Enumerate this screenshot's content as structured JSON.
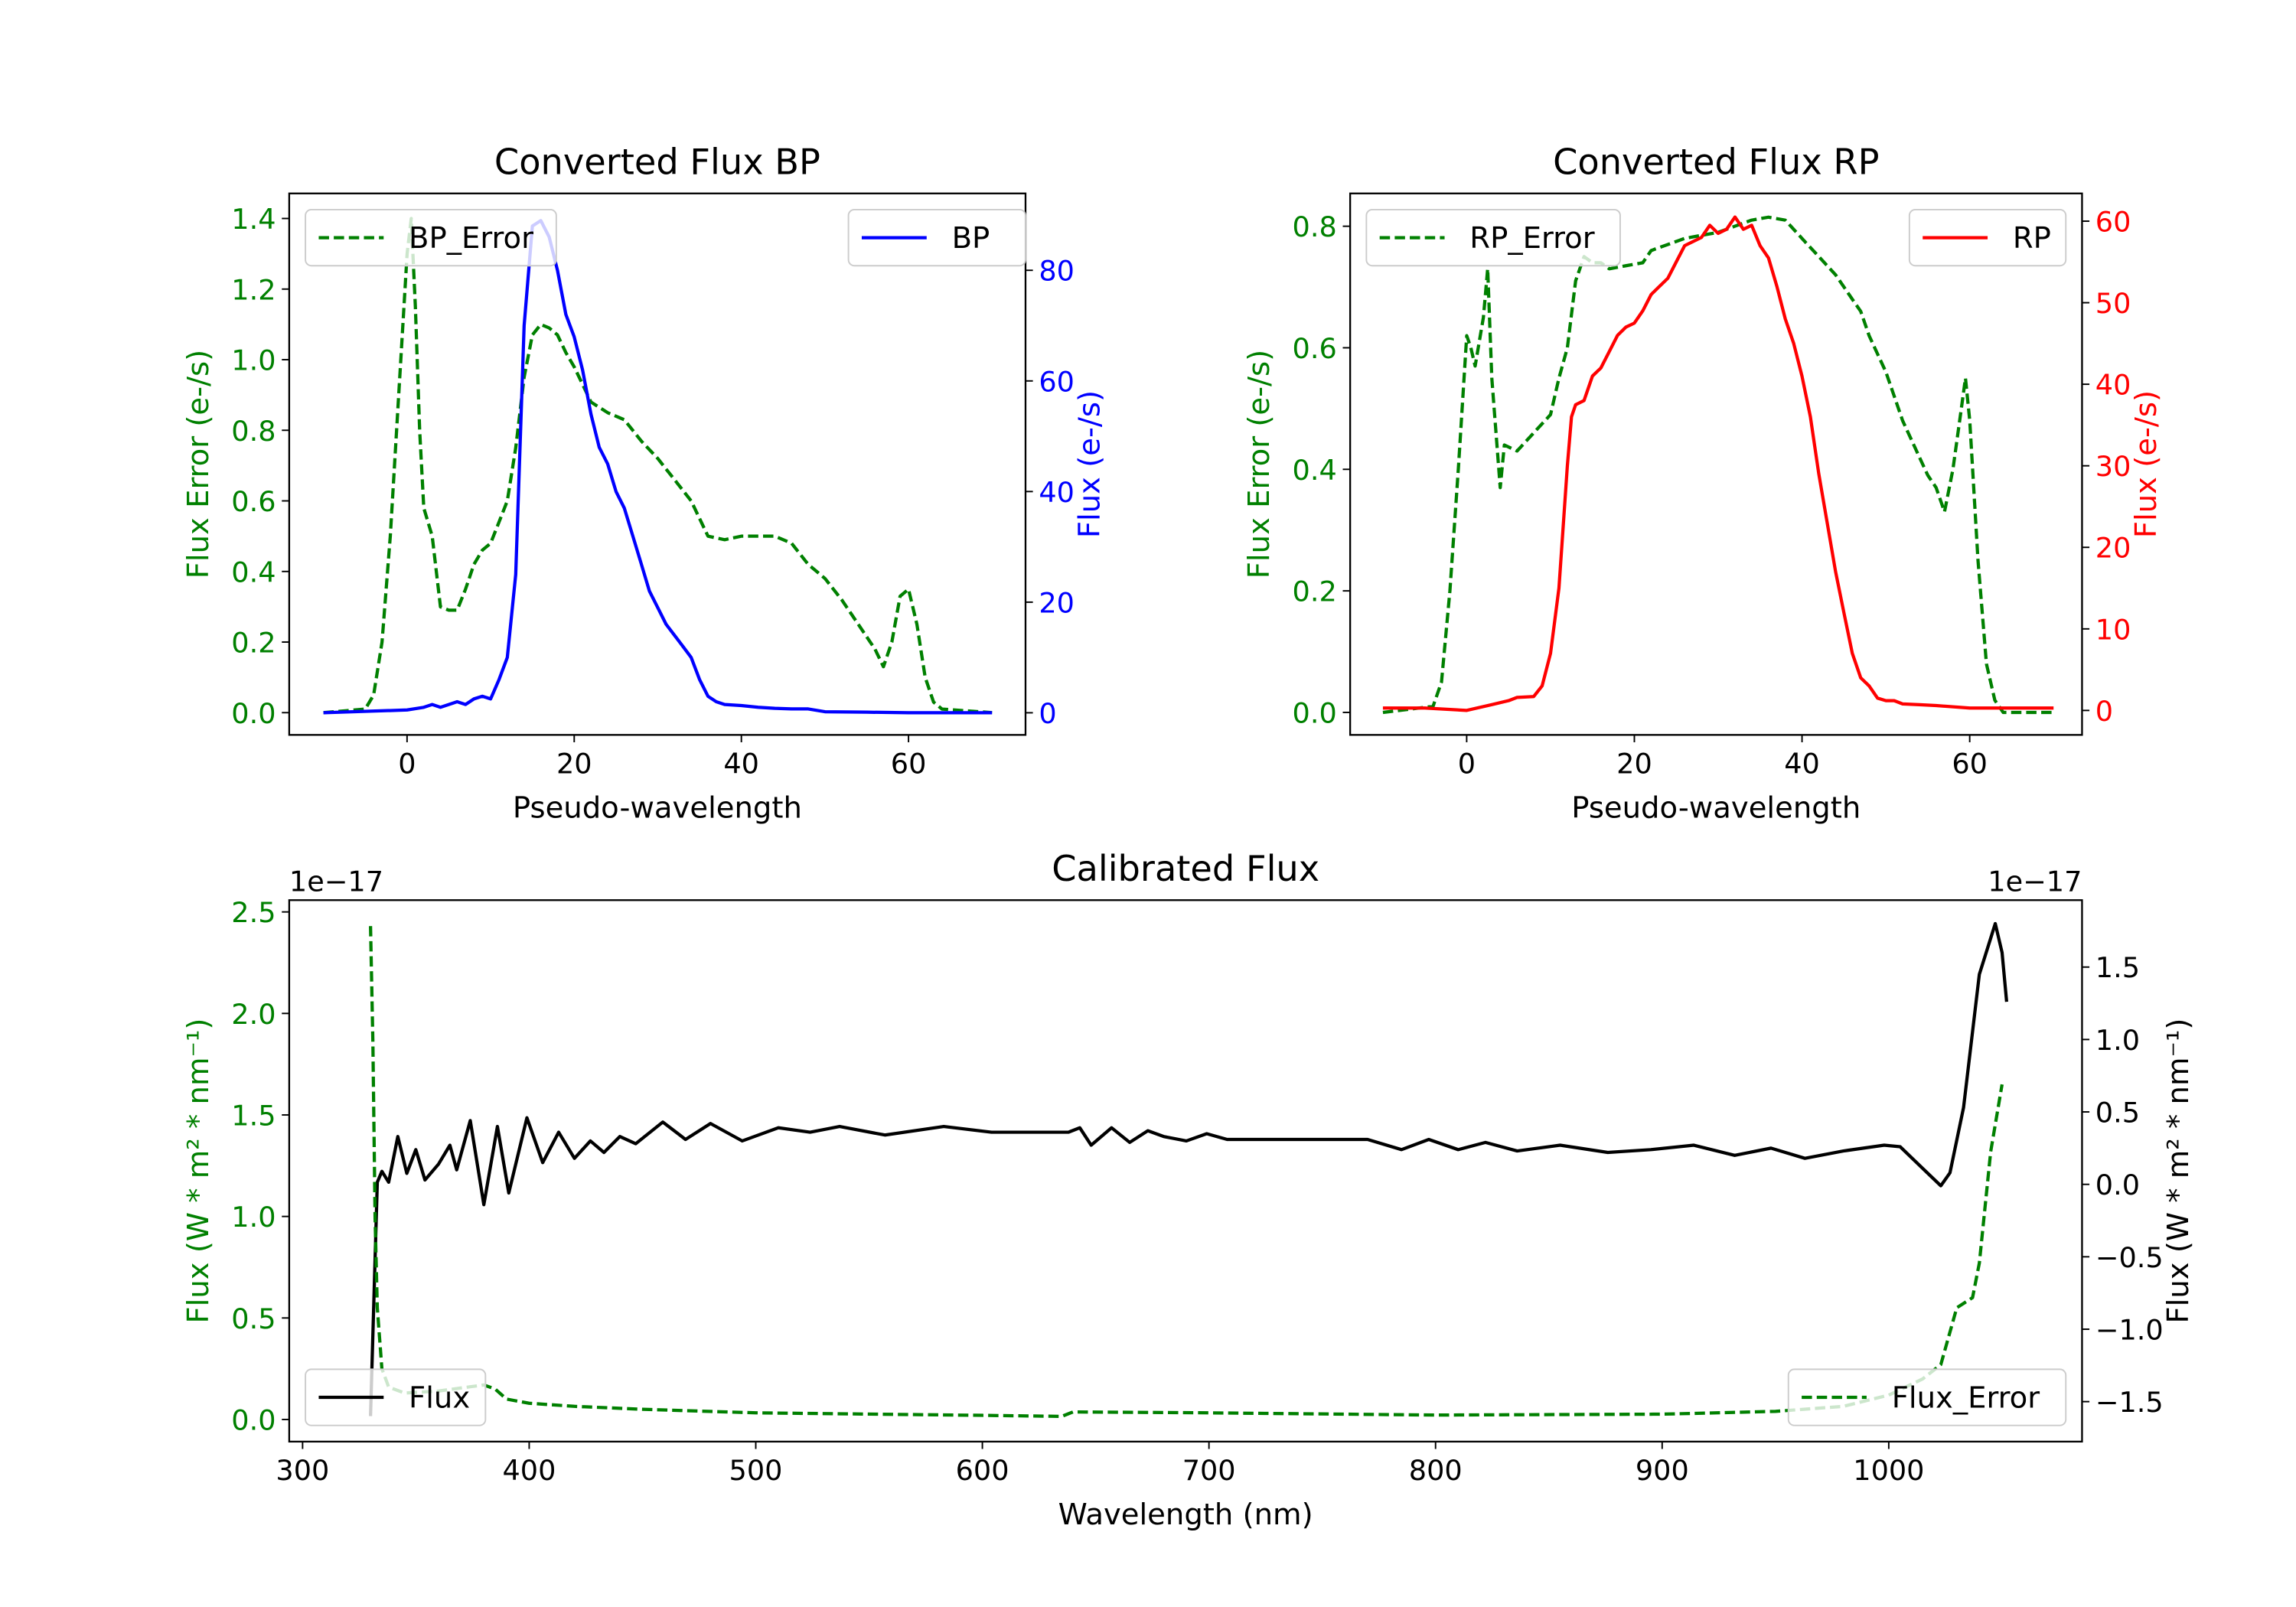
{
  "chart_data": [
    {
      "type": "line",
      "title": "Converted Flux BP",
      "xlabel": "Pseudo-wavelength",
      "xlim": [
        -14.1,
        74
      ],
      "xticks": [
        0,
        20,
        40,
        60
      ],
      "xtick_labels": [
        "0",
        "20",
        "40",
        "60"
      ],
      "left_axis": {
        "label": "Flux Error (e-/s)",
        "color": "#008000",
        "ylim": [
          -0.063,
          1.471
        ],
        "ticks": [
          0,
          0.2,
          0.4,
          0.6,
          0.8,
          1.0,
          1.2,
          1.4
        ],
        "tick_labels": [
          "0.0",
          "0.2",
          "0.4",
          "0.6",
          "0.8",
          "1.0",
          "1.2",
          "1.4"
        ]
      },
      "right_axis": {
        "label": "Flux (e-/s)",
        "color": "#0000ff",
        "ylim": [
          -4,
          93.9
        ],
        "ticks": [
          0,
          20,
          40,
          60,
          80
        ],
        "tick_labels": [
          "0",
          "20",
          "40",
          "60",
          "80"
        ]
      },
      "series": [
        {
          "name": "BP_Error",
          "axis": "left",
          "color": "#008000",
          "style": "dashed",
          "legend": "upper-left",
          "x": [
            -10,
            -5,
            -4,
            -3,
            -2,
            -1,
            0,
            0.5,
            1,
            1.5,
            2,
            3,
            4,
            5,
            6,
            7,
            8,
            9,
            10,
            11,
            12,
            13,
            14,
            15,
            16,
            17,
            18,
            19,
            20,
            21,
            22,
            24,
            26,
            28,
            30,
            32,
            34,
            36,
            38,
            40,
            42,
            44,
            46,
            48,
            50,
            52,
            54,
            56,
            57,
            58,
            59,
            60,
            61,
            62,
            63,
            64,
            70
          ],
          "y": [
            0,
            0.01,
            0.05,
            0.2,
            0.5,
            0.9,
            1.3,
            1.4,
            1.15,
            0.8,
            0.58,
            0.5,
            0.3,
            0.29,
            0.29,
            0.35,
            0.42,
            0.46,
            0.48,
            0.54,
            0.6,
            0.75,
            0.95,
            1.07,
            1.1,
            1.09,
            1.07,
            1.02,
            0.98,
            0.93,
            0.88,
            0.85,
            0.83,
            0.77,
            0.72,
            0.66,
            0.6,
            0.5,
            0.49,
            0.5,
            0.5,
            0.5,
            0.48,
            0.42,
            0.38,
            0.32,
            0.25,
            0.18,
            0.13,
            0.2,
            0.33,
            0.35,
            0.25,
            0.1,
            0.03,
            0.01,
            0
          ]
        },
        {
          "name": "BP",
          "axis": "right",
          "color": "#0000ff",
          "style": "solid",
          "legend": "upper-right",
          "x": [
            -10,
            0,
            2,
            3,
            4,
            5,
            6,
            7,
            8,
            9,
            10,
            11,
            12,
            13,
            14,
            15,
            16,
            17,
            18,
            19,
            20,
            21,
            22,
            23,
            24,
            25,
            26,
            27,
            28,
            29,
            30,
            31,
            32,
            33,
            34,
            35,
            36,
            37,
            38,
            40,
            42,
            44,
            46,
            48,
            50,
            55,
            60,
            70
          ],
          "y": [
            0,
            0.5,
            1,
            1.5,
            1,
            1.5,
            2,
            1.5,
            2.5,
            3,
            2.5,
            6,
            10,
            25,
            70,
            88,
            89,
            86,
            80,
            72,
            68,
            62,
            54,
            48,
            45,
            40,
            37,
            32,
            27,
            22,
            19,
            16,
            14,
            12,
            10,
            6,
            3,
            2,
            1.5,
            1.3,
            1,
            0.8,
            0.7,
            0.7,
            0.2,
            0.1,
            0,
            0
          ]
        }
      ]
    },
    {
      "type": "line",
      "title": "Converted Flux RP",
      "xlabel": "Pseudo-wavelength",
      "xlim": [
        -13.9,
        73.4
      ],
      "xticks": [
        0,
        20,
        40,
        60
      ],
      "xtick_labels": [
        "0",
        "20",
        "40",
        "60"
      ],
      "left_axis": {
        "label": "Flux Error (e-/s)",
        "color": "#008000",
        "ylim": [
          -0.037,
          0.854
        ],
        "ticks": [
          0,
          0.2,
          0.4,
          0.6,
          0.8
        ],
        "tick_labels": [
          "0.0",
          "0.2",
          "0.4",
          "0.6",
          "0.8"
        ]
      },
      "right_axis": {
        "label": "Flux (e-/s)",
        "color": "#ff0000",
        "ylim": [
          -3,
          63.4
        ],
        "ticks": [
          0,
          10,
          20,
          30,
          40,
          50,
          60
        ],
        "tick_labels": [
          "0",
          "10",
          "20",
          "30",
          "40",
          "50",
          "60"
        ]
      },
      "series": [
        {
          "name": "RP_Error",
          "axis": "left",
          "color": "#008000",
          "style": "dashed",
          "legend": "upper-left",
          "x": [
            -10,
            -4,
            -3,
            -2,
            -1,
            0,
            0.5,
            1,
            2,
            2.5,
            3,
            4,
            4.5,
            6,
            8,
            10,
            11,
            12,
            13,
            14,
            15,
            16,
            17,
            19,
            21,
            22,
            24,
            26,
            28,
            30,
            32,
            34,
            36,
            38,
            40,
            42,
            44,
            46,
            47,
            48,
            50,
            52,
            54,
            55,
            56,
            57,
            58,
            59,
            59.5,
            60,
            61,
            62,
            63,
            64,
            70
          ],
          "y": [
            0,
            0.01,
            0.05,
            0.2,
            0.4,
            0.62,
            0.6,
            0.57,
            0.65,
            0.73,
            0.55,
            0.37,
            0.44,
            0.43,
            0.46,
            0.49,
            0.55,
            0.6,
            0.71,
            0.75,
            0.74,
            0.74,
            0.73,
            0.735,
            0.74,
            0.76,
            0.77,
            0.78,
            0.785,
            0.79,
            0.8,
            0.81,
            0.815,
            0.81,
            0.78,
            0.75,
            0.72,
            0.68,
            0.66,
            0.62,
            0.56,
            0.48,
            0.42,
            0.39,
            0.37,
            0.33,
            0.4,
            0.5,
            0.55,
            0.48,
            0.25,
            0.08,
            0.02,
            0,
            0
          ]
        },
        {
          "name": "RP",
          "axis": "right",
          "color": "#ff0000",
          "style": "solid",
          "legend": "upper-right",
          "x": [
            -10,
            -5,
            0,
            3,
            5,
            6,
            8,
            9,
            10,
            11,
            12,
            12.5,
            13,
            14,
            15,
            16,
            17,
            18,
            19,
            20,
            21,
            22,
            23,
            24,
            25,
            26,
            27,
            28,
            29,
            30,
            31,
            32,
            33,
            34,
            35,
            36,
            37,
            38,
            39,
            40,
            41,
            42,
            43,
            44,
            45,
            46,
            47,
            48,
            49,
            50,
            51,
            52,
            54,
            56,
            60,
            64,
            70
          ],
          "y": [
            0.3,
            0.3,
            0,
            0.7,
            1.2,
            1.6,
            1.7,
            3,
            7,
            15,
            30,
            36,
            37.5,
            38,
            41,
            42,
            44,
            46,
            47,
            47.5,
            49,
            51,
            52,
            53,
            55,
            57,
            57.5,
            58,
            59.5,
            58.5,
            59,
            60.5,
            59,
            59.5,
            57,
            55.5,
            52,
            48,
            45,
            41,
            36,
            29,
            23,
            17,
            12,
            7,
            4,
            3,
            1.5,
            1.2,
            1.2,
            0.8,
            0.7,
            0.6,
            0.3,
            0.3,
            0.3
          ]
        }
      ]
    },
    {
      "type": "line",
      "title": "Calibrated Flux",
      "xlabel": "Wavelength (nm)",
      "xlim": [
        294.1,
        1085.3
      ],
      "xticks": [
        300,
        400,
        500,
        600,
        700,
        800,
        900,
        1000
      ],
      "xtick_labels": [
        "300",
        "400",
        "500",
        "600",
        "700",
        "800",
        "900",
        "1000"
      ],
      "left_axis": {
        "label": "Flux (W * m² * nm⁻¹)",
        "color": "#008000",
        "offset_text": "1e−17",
        "ylim": [
          -0.109,
          2.558
        ],
        "ticks": [
          0,
          0.5,
          1.0,
          1.5,
          2.0,
          2.5
        ],
        "tick_labels": [
          "0.0",
          "0.5",
          "1.0",
          "1.5",
          "2.0",
          "2.5"
        ]
      },
      "right_axis": {
        "label": "Flux (W * m² * nm⁻¹)",
        "color": "#000000",
        "offset_text": "1e−17",
        "ylim": [
          -1.776,
          1.962
        ],
        "ticks": [
          -1.5,
          -1.0,
          -0.5,
          0,
          0.5,
          1.0,
          1.5
        ],
        "tick_labels": [
          "−1.5",
          "−1.0",
          "−0.5",
          "0.0",
          "0.5",
          "1.0",
          "1.5"
        ]
      },
      "series": [
        {
          "name": "Flux",
          "axis": "right",
          "color": "#000000",
          "style": "solid",
          "legend": "lower-left",
          "x": [
            330,
            333,
            335,
            338,
            342,
            346,
            350,
            354,
            360,
            365,
            368,
            374,
            380,
            386,
            391,
            399,
            406,
            413,
            420,
            427,
            433,
            440,
            447,
            459,
            469,
            480,
            494,
            510,
            524,
            537,
            557,
            583,
            604,
            630,
            638,
            643,
            648,
            657,
            665,
            673,
            680,
            690,
            699,
            708,
            725,
            737,
            770,
            785,
            797,
            810,
            822,
            836,
            855,
            876,
            895,
            914,
            932,
            948,
            963,
            980,
            998,
            1005,
            1017,
            1023,
            1027,
            1033,
            1040,
            1047,
            1050,
            1052
          ],
          "y": [
            -1.6,
            0.015,
            0.09,
            0.015,
            0.33,
            0.076,
            0.24,
            0.03,
            0.14,
            0.27,
            0.1,
            0.44,
            -0.14,
            0.4,
            -0.06,
            0.46,
            0.15,
            0.36,
            0.18,
            0.3,
            0.22,
            0.33,
            0.28,
            0.43,
            0.31,
            0.42,
            0.3,
            0.39,
            0.36,
            0.4,
            0.34,
            0.4,
            0.36,
            0.36,
            0.36,
            0.39,
            0.27,
            0.39,
            0.29,
            0.37,
            0.33,
            0.3,
            0.35,
            0.31,
            0.31,
            0.31,
            0.31,
            0.24,
            0.31,
            0.24,
            0.29,
            0.23,
            0.27,
            0.22,
            0.24,
            0.27,
            0.2,
            0.25,
            0.18,
            0.23,
            0.27,
            0.26,
            0.08,
            -0.01,
            0.08,
            0.53,
            1.45,
            1.8,
            1.6,
            1.26
          ]
        },
        {
          "name": "Flux_Error",
          "axis": "left",
          "color": "#008000",
          "style": "dashed",
          "legend": "lower-right",
          "x": [
            330,
            331,
            332,
            333,
            335,
            338,
            345,
            360,
            380,
            385,
            390,
            400,
            420,
            450,
            500,
            600,
            635,
            640,
            700,
            800,
            900,
            950,
            980,
            1000,
            1015,
            1023,
            1030,
            1037,
            1040,
            1045,
            1050
          ],
          "y": [
            2.43,
            1.86,
            0.99,
            0.55,
            0.25,
            0.16,
            0.13,
            0.14,
            0.17,
            0.15,
            0.1,
            0.08,
            0.065,
            0.05,
            0.033,
            0.02,
            0.015,
            0.037,
            0.033,
            0.022,
            0.026,
            0.04,
            0.065,
            0.12,
            0.2,
            0.27,
            0.55,
            0.6,
            0.77,
            1.32,
            1.65
          ]
        }
      ]
    }
  ]
}
